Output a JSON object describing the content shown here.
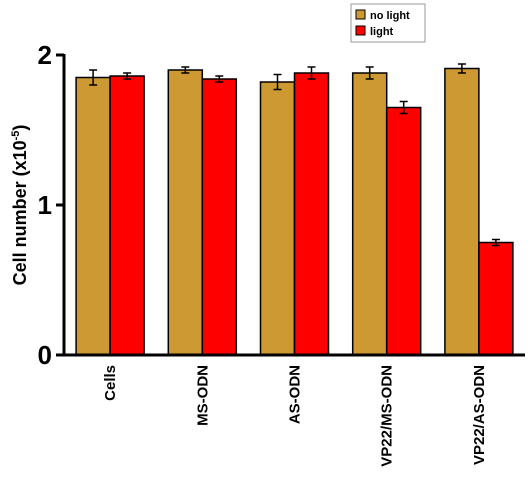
{
  "chart_data": {
    "type": "bar",
    "categories": [
      "Cells",
      "MS-ODN",
      "AS-ODN",
      "VP22/MS-ODN",
      "VP22/AS-ODN"
    ],
    "series": [
      {
        "name": "no light",
        "color": "#CC9933",
        "values": [
          1.85,
          1.9,
          1.82,
          1.88,
          1.91
        ],
        "errors": [
          0.05,
          0.02,
          0.05,
          0.04,
          0.03
        ]
      },
      {
        "name": "light",
        "color": "#FF0000",
        "values": [
          1.86,
          1.84,
          1.88,
          1.65,
          0.75
        ],
        "errors": [
          0.02,
          0.02,
          0.04,
          0.04,
          0.02
        ]
      }
    ],
    "ylabel_main": "Cell number (x10",
    "ylabel_exp": "-5",
    "ylabel_close": ")",
    "yticks": [
      "0",
      "1",
      "2"
    ],
    "ylim": [
      0,
      2
    ],
    "legend_position": "top-right",
    "grid": false
  }
}
